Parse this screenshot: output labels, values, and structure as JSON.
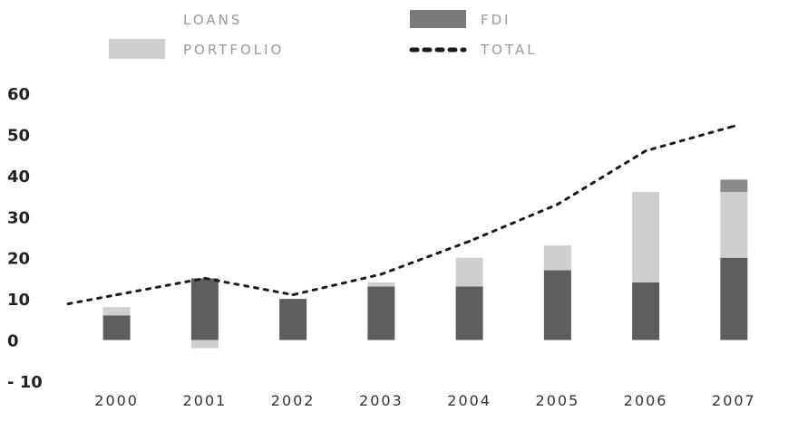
{
  "chart_data": {
    "type": "bar",
    "stacked": true,
    "categories": [
      "2000",
      "2001",
      "2002",
      "2003",
      "2004",
      "2005",
      "2006",
      "2007"
    ],
    "series": [
      {
        "name": "FDI",
        "kind": "bar",
        "values": [
          6,
          15,
          10,
          13,
          13,
          17,
          14,
          20
        ]
      },
      {
        "name": "PORTFOLIO",
        "kind": "bar",
        "values": [
          2,
          -2,
          0,
          1,
          7,
          6,
          22,
          16
        ]
      },
      {
        "name": "LOANS",
        "kind": "bar",
        "values": [
          0,
          0,
          0,
          0,
          0,
          0,
          0,
          3
        ]
      },
      {
        "name": "TOTAL",
        "kind": "line",
        "style": "dotted",
        "values": [
          11,
          15,
          11,
          16,
          24,
          33,
          46,
          52
        ]
      }
    ],
    "legend": {
      "placement": "top",
      "items": [
        "LOANS",
        "FDI",
        "PORTFOLIO",
        "TOTAL"
      ]
    },
    "yticks": [
      "60",
      "50",
      "40",
      "30",
      "20",
      "10",
      "0",
      "- 10"
    ],
    "ytick_values": [
      60,
      50,
      40,
      30,
      20,
      10,
      0,
      -10
    ],
    "ylim": [
      -10,
      60
    ],
    "grid": false,
    "title": "",
    "xlabel": "",
    "ylabel": "",
    "colors": {
      "LOANS": "#8a8a8a",
      "FDI": "#5e5e5e",
      "PORTFOLIO": "#cfcfcf",
      "TOTAL": "#1a1a1a",
      "background": "#ffffff"
    }
  }
}
